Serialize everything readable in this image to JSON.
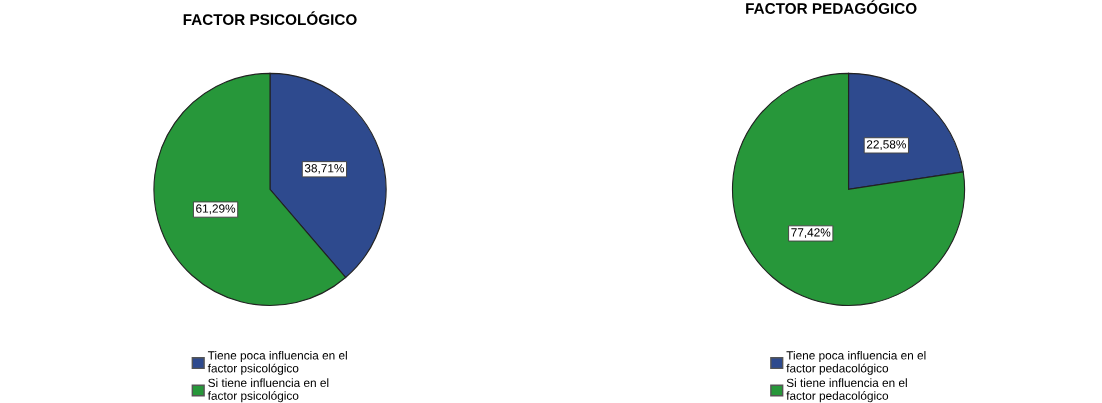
{
  "chart_data": [
    {
      "type": "pie",
      "title": "FACTOR PSICOLÓGICO",
      "categories": [
        "Tiene poca influencia en el\nfactor psicológico",
        "Si tiene influencia en el\nfactor psicológico"
      ],
      "values": [
        38.71,
        61.29
      ],
      "colors": [
        "#2e4a8e",
        "#27973a"
      ],
      "value_labels": [
        "38,71%",
        "61,29%"
      ],
      "legend": "bottom"
    },
    {
      "type": "pie",
      "title": "FACTOR PEDAGÓGICO",
      "categories": [
        "Tiene poca influencia en el\nfactor pedacológico",
        "Si tiene influencia en el\nfactor pedacológico"
      ],
      "values": [
        22.58,
        77.42
      ],
      "colors": [
        "#2e4a8e",
        "#27973a"
      ],
      "value_labels": [
        "22,58%",
        "77,42%"
      ],
      "legend": "bottom"
    }
  ]
}
